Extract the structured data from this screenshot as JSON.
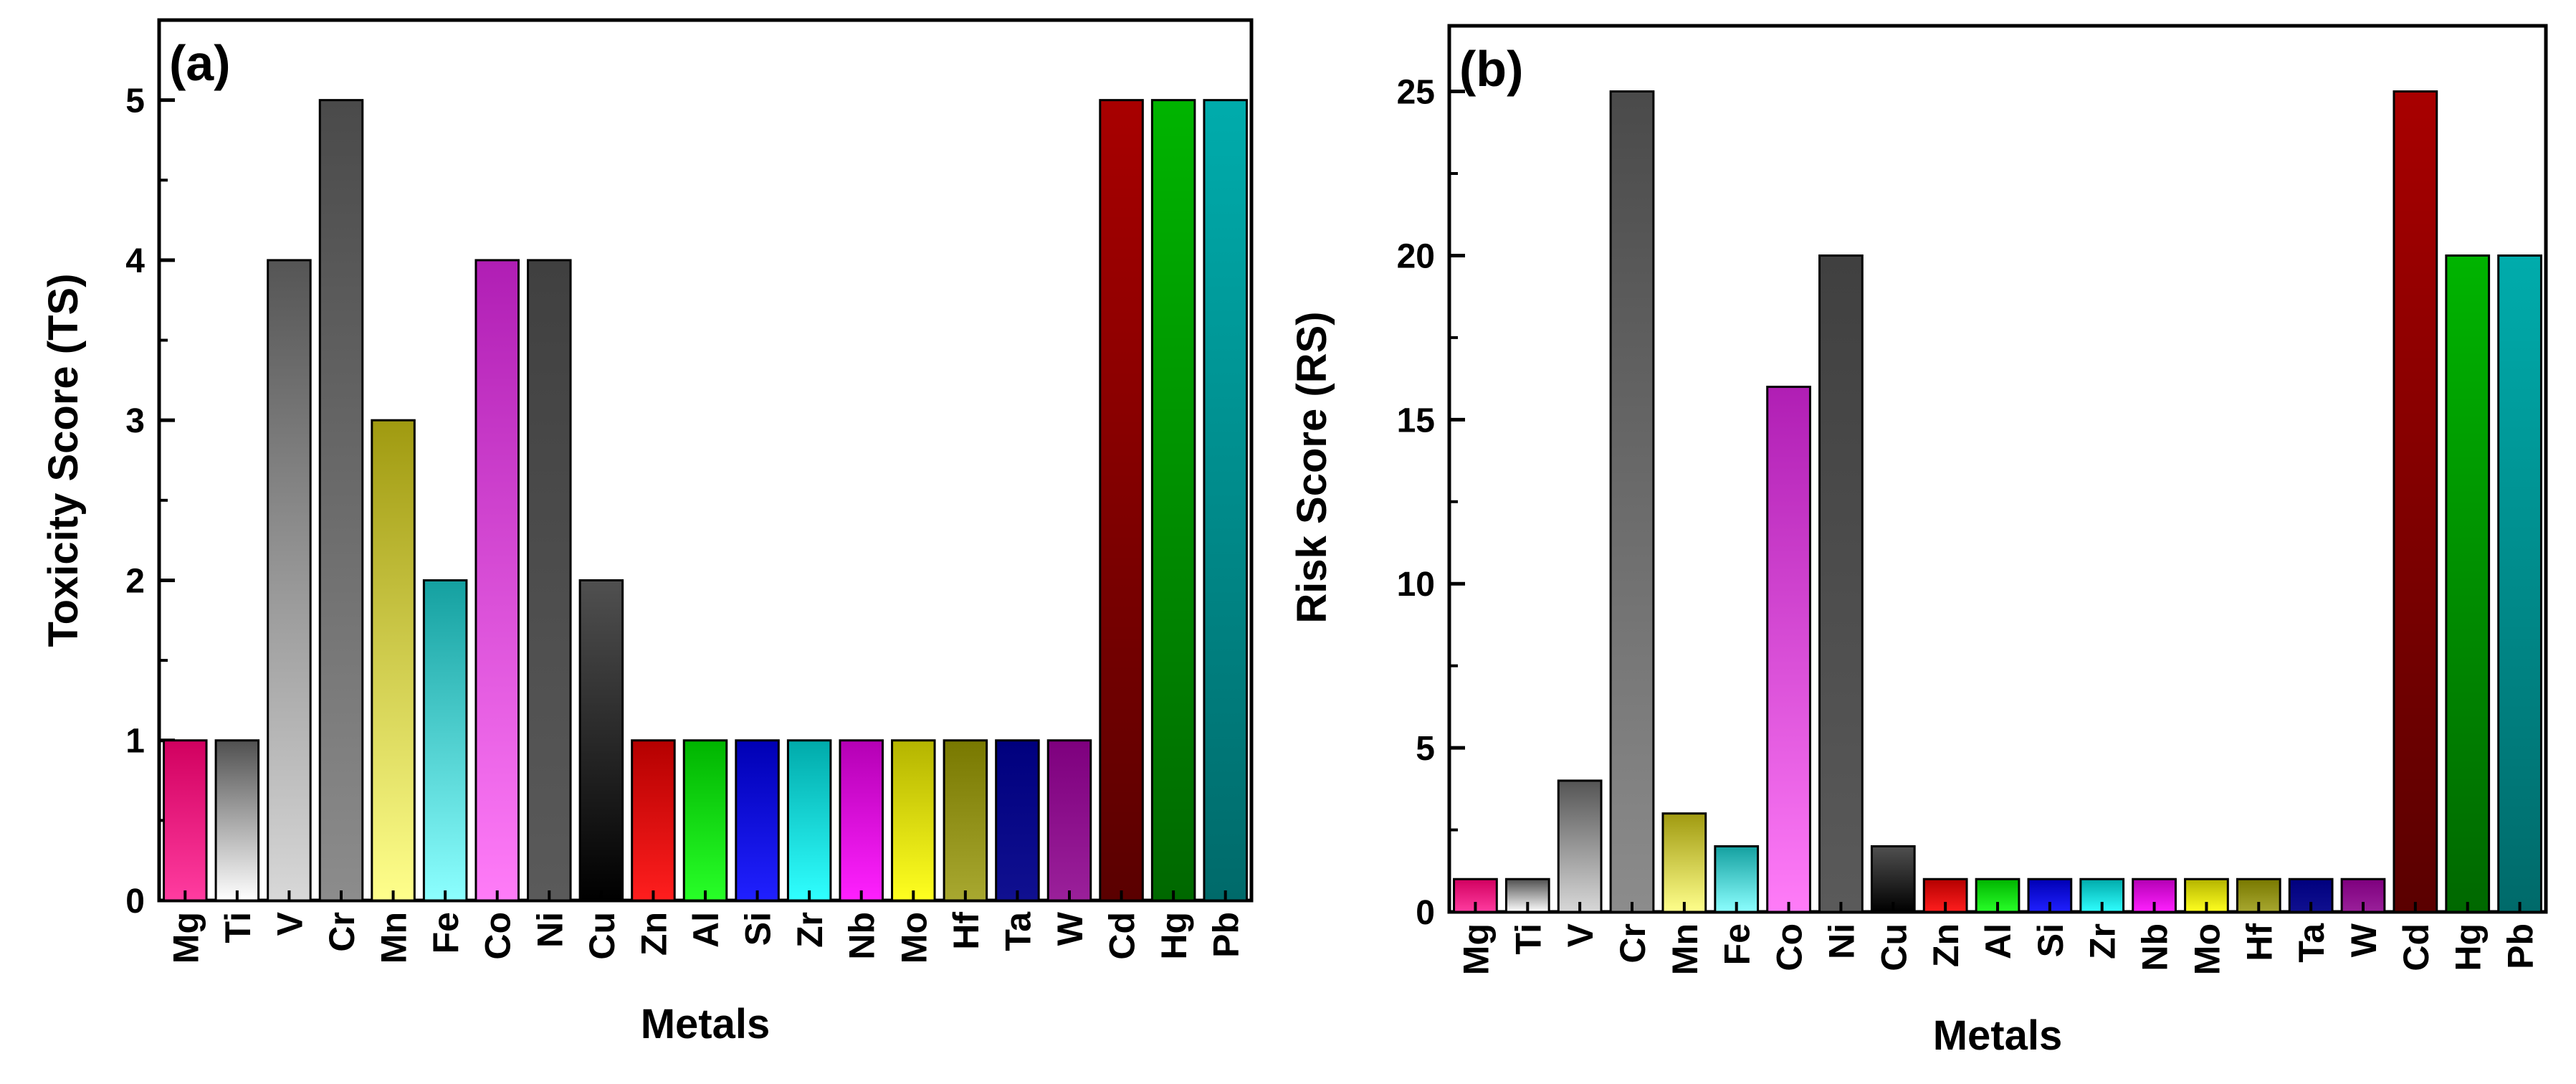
{
  "chart_data": [
    {
      "type": "bar",
      "panel_label": "(a)",
      "title": "",
      "xlabel": "Metals",
      "ylabel": "Toxicity Score (TS)",
      "ylim": [
        0,
        5.5
      ],
      "yticks": [
        0,
        1,
        2,
        3,
        4,
        5
      ],
      "grid": false,
      "categories": [
        "Mg",
        "Ti",
        "V",
        "Cr",
        "Mn",
        "Fe",
        "Co",
        "Ni",
        "Cu",
        "Zn",
        "Al",
        "Si",
        "Zr",
        "Nb",
        "Mo",
        "Hf",
        "Ta",
        "W",
        "Cd",
        "Hg",
        "Pb"
      ],
      "values": [
        1,
        1,
        4,
        5,
        3,
        2,
        4,
        4,
        2,
        1,
        1,
        1,
        1,
        1,
        1,
        1,
        1,
        1,
        5,
        5,
        5
      ]
    },
    {
      "type": "bar",
      "panel_label": "(b)",
      "title": "",
      "xlabel": "Metals",
      "ylabel": "Risk Score (RS)",
      "ylim": [
        0,
        27
      ],
      "yticks": [
        0,
        5,
        10,
        15,
        20,
        25
      ],
      "grid": false,
      "categories": [
        "Mg",
        "Ti",
        "V",
        "Cr",
        "Mn",
        "Fe",
        "Co",
        "Ni",
        "Cu",
        "Zn",
        "Al",
        "Si",
        "Zr",
        "Nb",
        "Mo",
        "Hf",
        "Ta",
        "W",
        "Cd",
        "Hg",
        "Pb"
      ],
      "values": [
        1,
        1,
        4,
        25,
        3,
        2,
        16,
        20,
        2,
        1,
        1,
        1,
        1,
        1,
        1,
        1,
        1,
        1,
        25,
        20,
        20
      ]
    }
  ],
  "bar_colors": {
    "Mg": [
      "#d1005f",
      "#ff3ca0"
    ],
    "Ti": [
      "#505050",
      "#ffffff"
    ],
    "V": [
      "#555555",
      "#d8d8d8"
    ],
    "Cr": [
      "#4a4a4a",
      "#8c8c8c"
    ],
    "Mn": [
      "#a09a10",
      "#ffff8c"
    ],
    "Fe": [
      "#14a0a0",
      "#8cffff"
    ],
    "Co": [
      "#b01eb4",
      "#ff7cf8"
    ],
    "Ni": [
      "#404040",
      "#5a5a5a"
    ],
    "Cu": [
      "#505050",
      "#000000"
    ],
    "Zn": [
      "#b40000",
      "#ff1e1e"
    ],
    "Al": [
      "#00b400",
      "#28ff28"
    ],
    "Si": [
      "#0000b4",
      "#2020ff"
    ],
    "Zr": [
      "#00aaaa",
      "#30ffff"
    ],
    "Nb": [
      "#b400b4",
      "#ff20ff"
    ],
    "Mo": [
      "#b4b400",
      "#ffff20"
    ],
    "Hf": [
      "#787800",
      "#a8a830"
    ],
    "Ta": [
      "#00007e",
      "#101090"
    ],
    "W": [
      "#7e007e",
      "#9a209a"
    ],
    "Cd": [
      "#a80000",
      "#5a0000"
    ],
    "Hg": [
      "#00b400",
      "#006800"
    ],
    "Pb": [
      "#00acac",
      "#006a6a"
    ]
  }
}
